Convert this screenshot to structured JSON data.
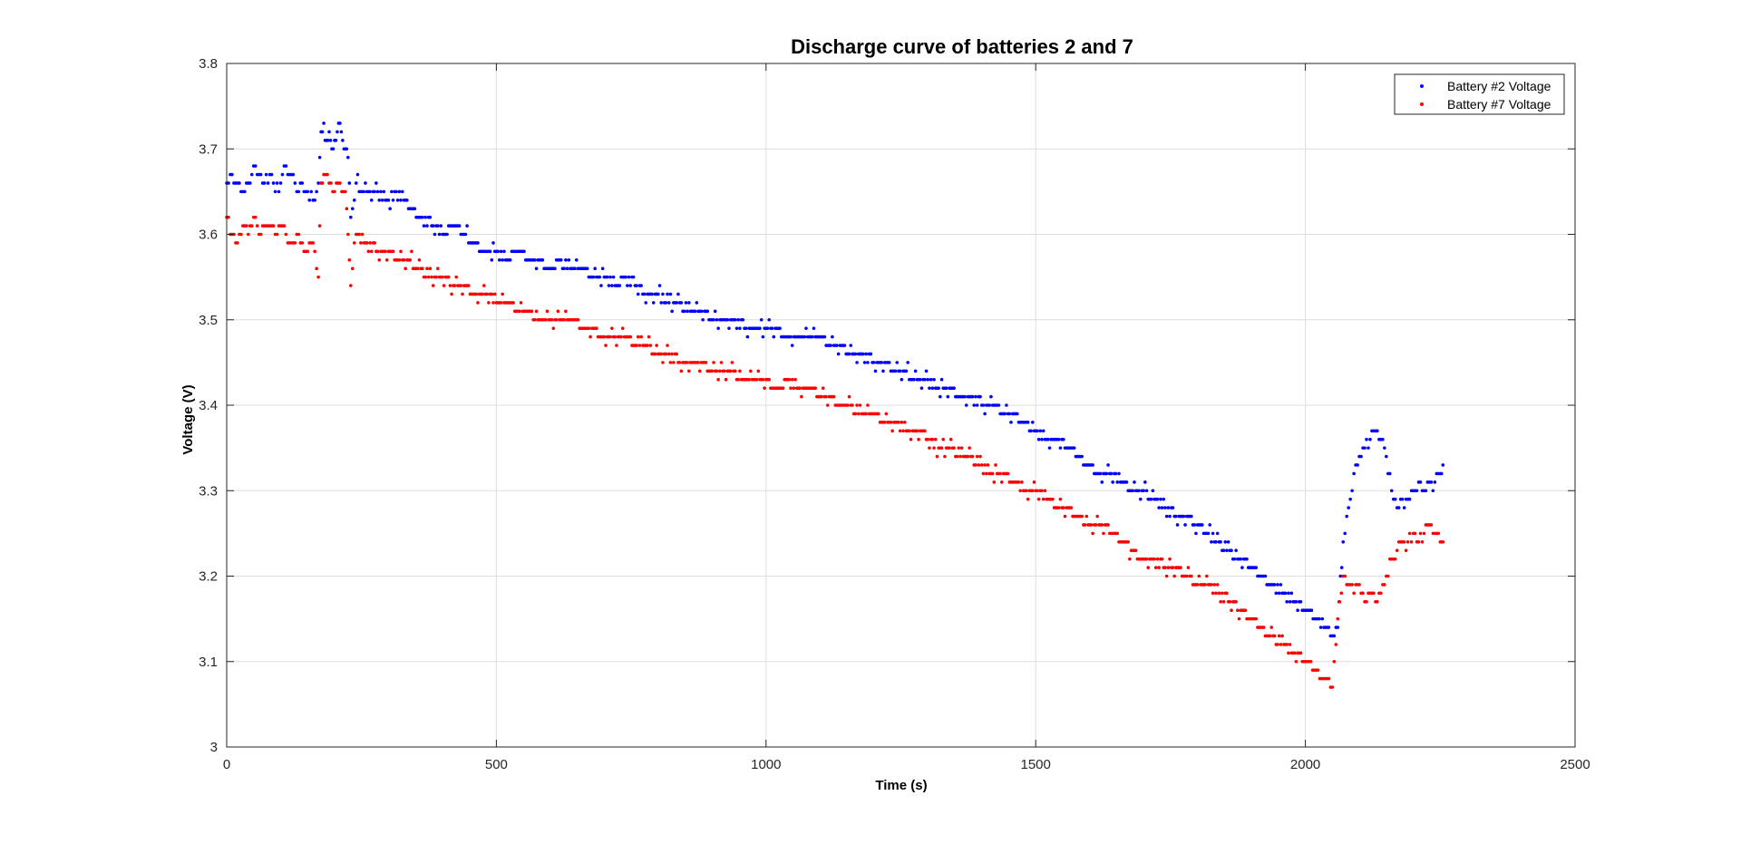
{
  "chart_data": {
    "type": "scatter",
    "title": "Discharge curve of batteries 2 and 7",
    "xlabel": "Time (s)",
    "ylabel": "Voltage (V)",
    "xlim": [
      0,
      2500
    ],
    "ylim": [
      3.0,
      3.8
    ],
    "xticks": [
      0,
      500,
      1000,
      1500,
      2000,
      2500
    ],
    "xtick_labels": [
      "0",
      "500",
      "1000",
      "1500",
      "2000",
      "2500"
    ],
    "yticks": [
      3.0,
      3.1,
      3.2,
      3.3,
      3.4,
      3.5,
      3.6,
      3.7,
      3.8
    ],
    "ytick_labels": [
      "3",
      "3.1",
      "3.2",
      "3.3",
      "3.4",
      "3.5",
      "3.6",
      "3.7",
      "3.8"
    ],
    "grid": true,
    "legend_position": "top-right",
    "quantization": 0.01,
    "series": [
      {
        "name": "Battery #2 Voltage",
        "color": "#0000ff",
        "points": [
          [
            0,
            3.66
          ],
          [
            10,
            3.67
          ],
          [
            20,
            3.66
          ],
          [
            30,
            3.65
          ],
          [
            40,
            3.66
          ],
          [
            50,
            3.68
          ],
          [
            60,
            3.67
          ],
          [
            70,
            3.66
          ],
          [
            80,
            3.67
          ],
          [
            90,
            3.65
          ],
          [
            100,
            3.66
          ],
          [
            110,
            3.68
          ],
          [
            120,
            3.67
          ],
          [
            130,
            3.65
          ],
          [
            140,
            3.66
          ],
          [
            150,
            3.65
          ],
          [
            160,
            3.64
          ],
          [
            170,
            3.66
          ],
          [
            175,
            3.72
          ],
          [
            180,
            3.73
          ],
          [
            185,
            3.71
          ],
          [
            190,
            3.72
          ],
          [
            195,
            3.7
          ],
          [
            200,
            3.71
          ],
          [
            205,
            3.72
          ],
          [
            210,
            3.73
          ],
          [
            215,
            3.71
          ],
          [
            220,
            3.7
          ],
          [
            225,
            3.69
          ],
          [
            230,
            3.62
          ],
          [
            240,
            3.66
          ],
          [
            260,
            3.65
          ],
          [
            280,
            3.65
          ],
          [
            300,
            3.64
          ],
          [
            320,
            3.65
          ],
          [
            340,
            3.63
          ],
          [
            360,
            3.62
          ],
          [
            380,
            3.61
          ],
          [
            400,
            3.6
          ],
          [
            420,
            3.61
          ],
          [
            440,
            3.6
          ],
          [
            460,
            3.59
          ],
          [
            480,
            3.58
          ],
          [
            500,
            3.58
          ],
          [
            520,
            3.57
          ],
          [
            540,
            3.58
          ],
          [
            560,
            3.57
          ],
          [
            580,
            3.57
          ],
          [
            600,
            3.56
          ],
          [
            620,
            3.57
          ],
          [
            640,
            3.56
          ],
          [
            660,
            3.56
          ],
          [
            680,
            3.55
          ],
          [
            700,
            3.55
          ],
          [
            720,
            3.54
          ],
          [
            740,
            3.55
          ],
          [
            760,
            3.54
          ],
          [
            780,
            3.53
          ],
          [
            800,
            3.53
          ],
          [
            820,
            3.52
          ],
          [
            840,
            3.52
          ],
          [
            860,
            3.51
          ],
          [
            880,
            3.51
          ],
          [
            900,
            3.5
          ],
          [
            920,
            3.5
          ],
          [
            940,
            3.5
          ],
          [
            960,
            3.49
          ],
          [
            980,
            3.49
          ],
          [
            1000,
            3.49
          ],
          [
            1020,
            3.49
          ],
          [
            1040,
            3.48
          ],
          [
            1060,
            3.48
          ],
          [
            1080,
            3.48
          ],
          [
            1100,
            3.48
          ],
          [
            1120,
            3.47
          ],
          [
            1140,
            3.47
          ],
          [
            1160,
            3.46
          ],
          [
            1180,
            3.46
          ],
          [
            1200,
            3.45
          ],
          [
            1220,
            3.45
          ],
          [
            1240,
            3.44
          ],
          [
            1260,
            3.44
          ],
          [
            1280,
            3.43
          ],
          [
            1300,
            3.43
          ],
          [
            1320,
            3.42
          ],
          [
            1340,
            3.42
          ],
          [
            1360,
            3.41
          ],
          [
            1380,
            3.41
          ],
          [
            1400,
            3.4
          ],
          [
            1420,
            3.4
          ],
          [
            1440,
            3.39
          ],
          [
            1460,
            3.39
          ],
          [
            1480,
            3.38
          ],
          [
            1500,
            3.37
          ],
          [
            1520,
            3.36
          ],
          [
            1540,
            3.36
          ],
          [
            1560,
            3.35
          ],
          [
            1580,
            3.34
          ],
          [
            1600,
            3.33
          ],
          [
            1620,
            3.32
          ],
          [
            1640,
            3.32
          ],
          [
            1660,
            3.31
          ],
          [
            1680,
            3.3
          ],
          [
            1700,
            3.3
          ],
          [
            1720,
            3.29
          ],
          [
            1740,
            3.28
          ],
          [
            1760,
            3.27
          ],
          [
            1780,
            3.27
          ],
          [
            1800,
            3.26
          ],
          [
            1820,
            3.25
          ],
          [
            1840,
            3.24
          ],
          [
            1860,
            3.23
          ],
          [
            1880,
            3.22
          ],
          [
            1900,
            3.21
          ],
          [
            1920,
            3.2
          ],
          [
            1940,
            3.19
          ],
          [
            1960,
            3.18
          ],
          [
            1980,
            3.17
          ],
          [
            2000,
            3.16
          ],
          [
            2020,
            3.15
          ],
          [
            2040,
            3.14
          ],
          [
            2050,
            3.13
          ],
          [
            2060,
            3.14
          ],
          [
            2065,
            3.2
          ],
          [
            2070,
            3.24
          ],
          [
            2080,
            3.28
          ],
          [
            2090,
            3.32
          ],
          [
            2100,
            3.34
          ],
          [
            2110,
            3.35
          ],
          [
            2120,
            3.36
          ],
          [
            2130,
            3.37
          ],
          [
            2140,
            3.36
          ],
          [
            2150,
            3.34
          ],
          [
            2160,
            3.3
          ],
          [
            2170,
            3.28
          ],
          [
            2180,
            3.29
          ],
          [
            2190,
            3.29
          ],
          [
            2200,
            3.3
          ],
          [
            2210,
            3.31
          ],
          [
            2220,
            3.3
          ],
          [
            2230,
            3.31
          ],
          [
            2240,
            3.31
          ],
          [
            2250,
            3.32
          ],
          [
            2255,
            3.33
          ]
        ]
      },
      {
        "name": "Battery #7 Voltage",
        "color": "#ff0000",
        "points": [
          [
            0,
            3.62
          ],
          [
            10,
            3.6
          ],
          [
            20,
            3.59
          ],
          [
            30,
            3.61
          ],
          [
            40,
            3.6
          ],
          [
            50,
            3.62
          ],
          [
            60,
            3.6
          ],
          [
            70,
            3.61
          ],
          [
            80,
            3.61
          ],
          [
            90,
            3.6
          ],
          [
            100,
            3.61
          ],
          [
            110,
            3.6
          ],
          [
            120,
            3.59
          ],
          [
            130,
            3.6
          ],
          [
            140,
            3.59
          ],
          [
            150,
            3.58
          ],
          [
            160,
            3.59
          ],
          [
            170,
            3.55
          ],
          [
            175,
            3.66
          ],
          [
            180,
            3.67
          ],
          [
            190,
            3.66
          ],
          [
            200,
            3.65
          ],
          [
            210,
            3.66
          ],
          [
            220,
            3.65
          ],
          [
            225,
            3.6
          ],
          [
            230,
            3.54
          ],
          [
            240,
            3.6
          ],
          [
            260,
            3.59
          ],
          [
            280,
            3.58
          ],
          [
            300,
            3.58
          ],
          [
            320,
            3.57
          ],
          [
            340,
            3.57
          ],
          [
            360,
            3.56
          ],
          [
            380,
            3.55
          ],
          [
            400,
            3.55
          ],
          [
            420,
            3.54
          ],
          [
            440,
            3.54
          ],
          [
            460,
            3.53
          ],
          [
            480,
            3.53
          ],
          [
            500,
            3.52
          ],
          [
            520,
            3.52
          ],
          [
            540,
            3.51
          ],
          [
            560,
            3.51
          ],
          [
            580,
            3.5
          ],
          [
            600,
            3.5
          ],
          [
            620,
            3.5
          ],
          [
            640,
            3.5
          ],
          [
            660,
            3.49
          ],
          [
            680,
            3.49
          ],
          [
            700,
            3.48
          ],
          [
            720,
            3.48
          ],
          [
            740,
            3.48
          ],
          [
            760,
            3.47
          ],
          [
            780,
            3.47
          ],
          [
            800,
            3.46
          ],
          [
            820,
            3.46
          ],
          [
            840,
            3.45
          ],
          [
            860,
            3.45
          ],
          [
            880,
            3.45
          ],
          [
            900,
            3.44
          ],
          [
            920,
            3.44
          ],
          [
            940,
            3.44
          ],
          [
            960,
            3.43
          ],
          [
            980,
            3.43
          ],
          [
            1000,
            3.43
          ],
          [
            1020,
            3.42
          ],
          [
            1040,
            3.43
          ],
          [
            1060,
            3.42
          ],
          [
            1080,
            3.42
          ],
          [
            1100,
            3.41
          ],
          [
            1120,
            3.41
          ],
          [
            1140,
            3.4
          ],
          [
            1160,
            3.4
          ],
          [
            1180,
            3.39
          ],
          [
            1200,
            3.39
          ],
          [
            1220,
            3.38
          ],
          [
            1240,
            3.38
          ],
          [
            1260,
            3.37
          ],
          [
            1280,
            3.37
          ],
          [
            1300,
            3.36
          ],
          [
            1320,
            3.35
          ],
          [
            1340,
            3.35
          ],
          [
            1360,
            3.34
          ],
          [
            1380,
            3.34
          ],
          [
            1400,
            3.33
          ],
          [
            1420,
            3.32
          ],
          [
            1440,
            3.32
          ],
          [
            1460,
            3.31
          ],
          [
            1480,
            3.3
          ],
          [
            1500,
            3.3
          ],
          [
            1520,
            3.29
          ],
          [
            1540,
            3.28
          ],
          [
            1560,
            3.28
          ],
          [
            1580,
            3.27
          ],
          [
            1600,
            3.26
          ],
          [
            1620,
            3.26
          ],
          [
            1640,
            3.25
          ],
          [
            1660,
            3.24
          ],
          [
            1680,
            3.23
          ],
          [
            1700,
            3.22
          ],
          [
            1720,
            3.22
          ],
          [
            1740,
            3.21
          ],
          [
            1760,
            3.21
          ],
          [
            1780,
            3.2
          ],
          [
            1800,
            3.19
          ],
          [
            1820,
            3.19
          ],
          [
            1840,
            3.18
          ],
          [
            1860,
            3.17
          ],
          [
            1880,
            3.16
          ],
          [
            1900,
            3.15
          ],
          [
            1920,
            3.14
          ],
          [
            1940,
            3.13
          ],
          [
            1960,
            3.12
          ],
          [
            1980,
            3.11
          ],
          [
            2000,
            3.1
          ],
          [
            2010,
            3.1
          ],
          [
            2020,
            3.09
          ],
          [
            2030,
            3.08
          ],
          [
            2040,
            3.08
          ],
          [
            2050,
            3.07
          ],
          [
            2060,
            3.15
          ],
          [
            2070,
            3.2
          ],
          [
            2080,
            3.19
          ],
          [
            2090,
            3.18
          ],
          [
            2100,
            3.19
          ],
          [
            2110,
            3.17
          ],
          [
            2120,
            3.18
          ],
          [
            2130,
            3.17
          ],
          [
            2140,
            3.18
          ],
          [
            2150,
            3.2
          ],
          [
            2160,
            3.22
          ],
          [
            2170,
            3.23
          ],
          [
            2180,
            3.24
          ],
          [
            2190,
            3.24
          ],
          [
            2200,
            3.25
          ],
          [
            2210,
            3.24
          ],
          [
            2220,
            3.25
          ],
          [
            2230,
            3.26
          ],
          [
            2240,
            3.25
          ],
          [
            2250,
            3.24
          ],
          [
            2255,
            3.24
          ]
        ]
      }
    ]
  }
}
